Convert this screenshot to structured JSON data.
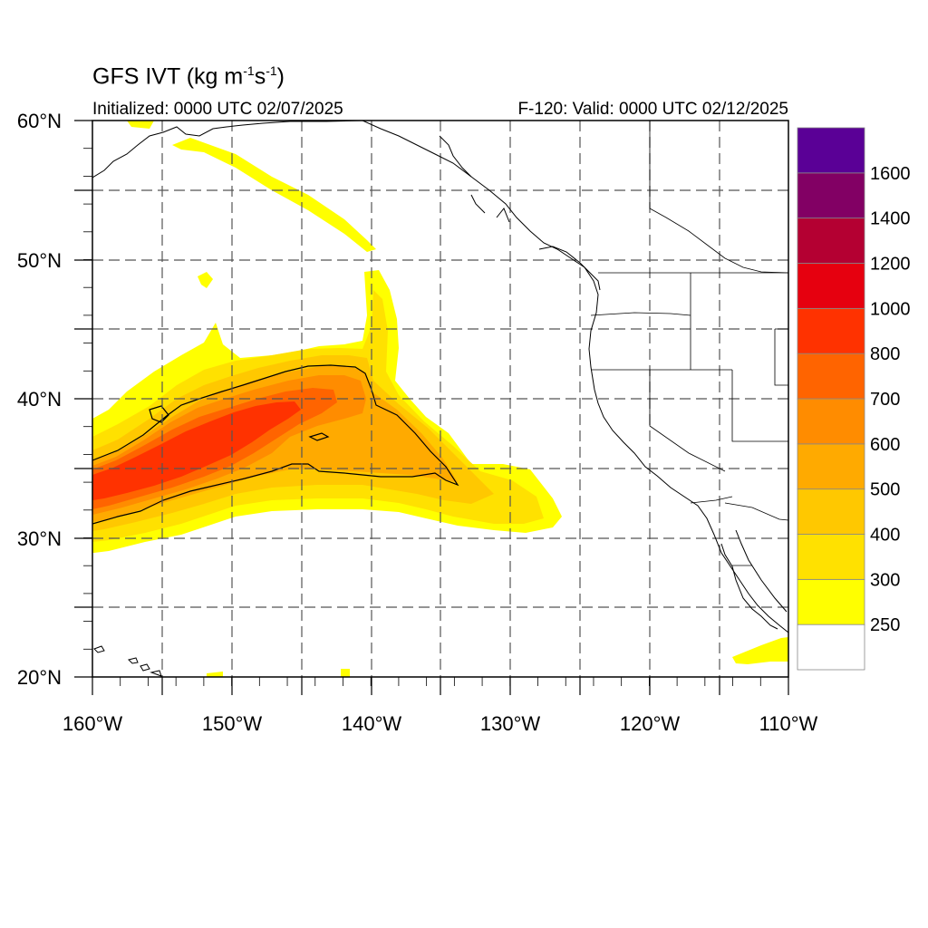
{
  "title": {
    "text": "GFS IVT (kg m",
    "unit_exp1": "-1",
    "mid": "s",
    "unit_exp2": "-1",
    "close": ")"
  },
  "subtitle": {
    "left": "Initialized: 0000 UTC 02/07/2025",
    "right": "F-120: Valid: 0000 UTC 02/12/2025"
  },
  "map": {
    "lon_range": [
      -160,
      -110
    ],
    "lat_range": [
      20,
      60
    ],
    "lon_ticks": [
      "160°W",
      "150°W",
      "140°W",
      "130°W",
      "120°W",
      "110°W"
    ],
    "lat_ticks": [
      "20°N",
      "30°N",
      "40°N",
      "50°N",
      "60°N"
    ],
    "grid": "dashed",
    "contour_level": 500
  },
  "colorbar": {
    "labels": [
      "250",
      "300",
      "400",
      "500",
      "600",
      "700",
      "800",
      "1000",
      "1200",
      "1400",
      "1600"
    ],
    "colors": [
      "#ffffff",
      "#ffff00",
      "#ffe100",
      "#ffc800",
      "#ffaa00",
      "#ff8c00",
      "#ff6400",
      "#ff3200",
      "#e6000f",
      "#b40032",
      "#820064",
      "#5a0096"
    ]
  },
  "colors": {
    "coast": "#000000",
    "grid": "#555555"
  }
}
